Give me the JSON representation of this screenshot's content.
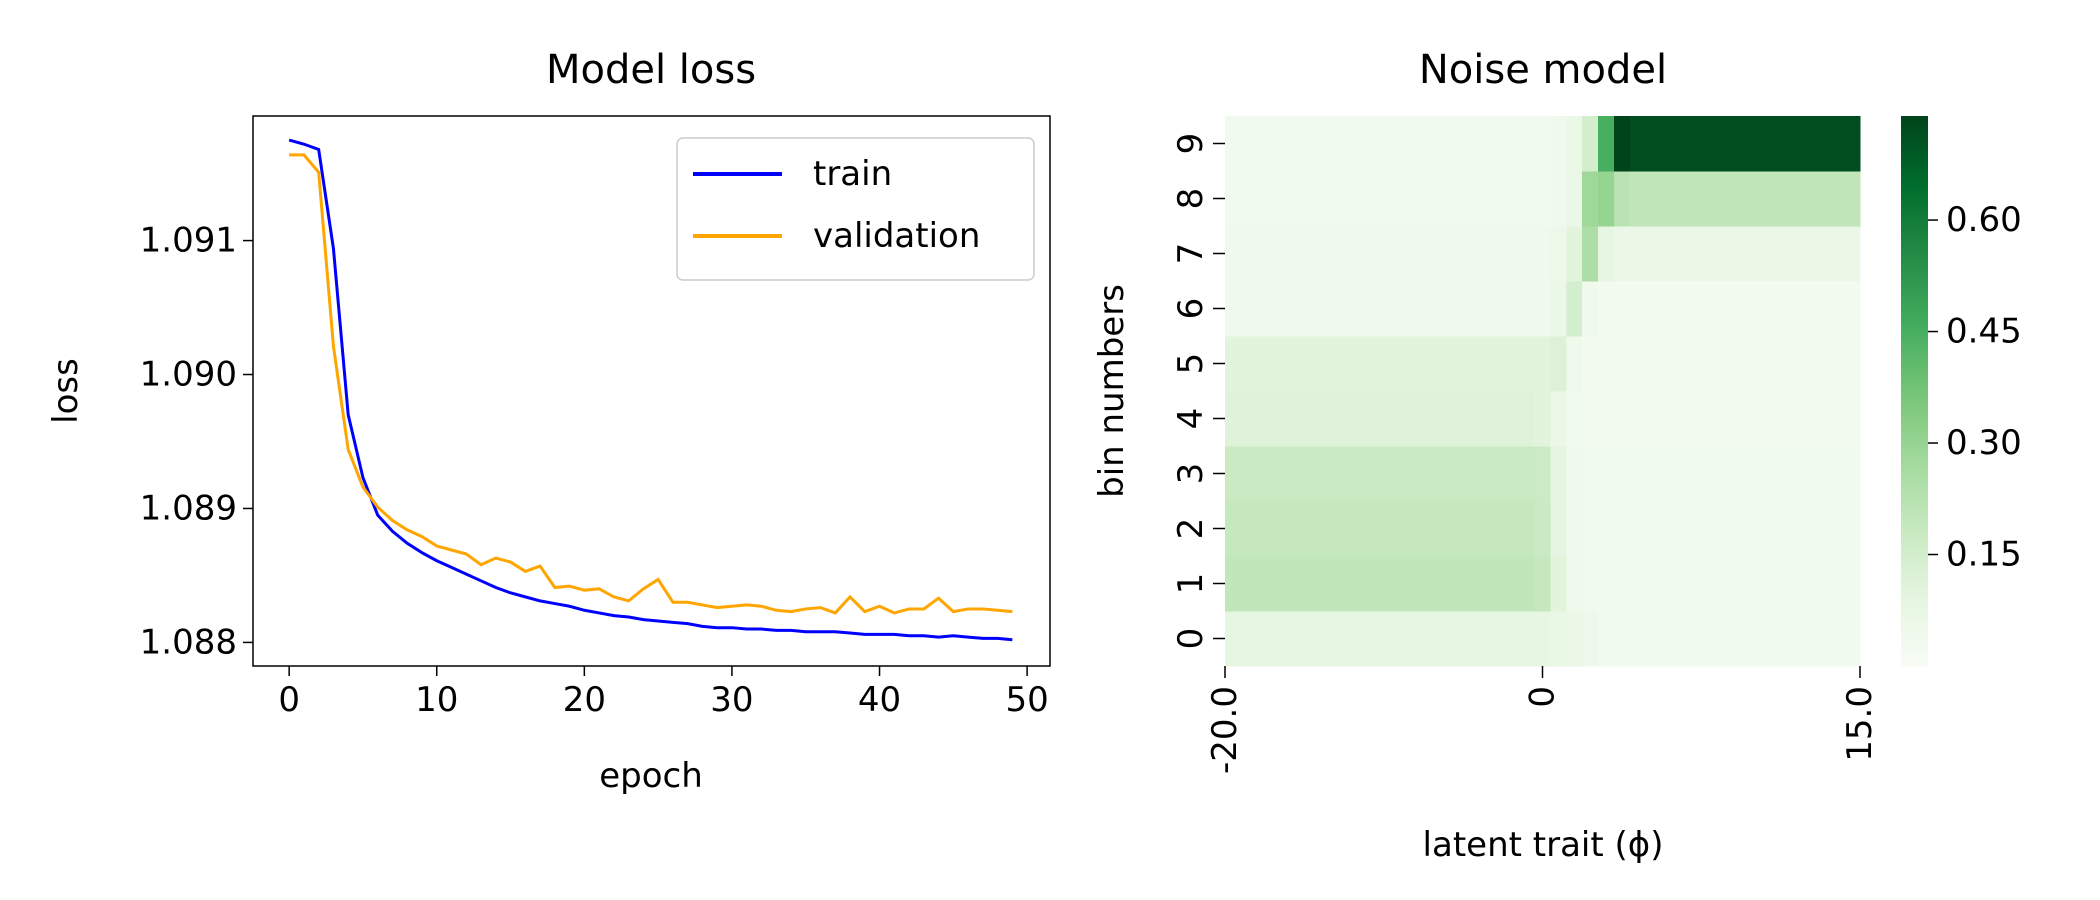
{
  "chart_data": [
    {
      "type": "line",
      "title": "Model loss",
      "x_label": "epoch",
      "y_label": "loss",
      "x": [
        0,
        1,
        2,
        3,
        4,
        5,
        6,
        7,
        8,
        9,
        10,
        11,
        12,
        13,
        14,
        15,
        16,
        17,
        18,
        19,
        20,
        21,
        22,
        23,
        24,
        25,
        26,
        27,
        28,
        29,
        30,
        31,
        32,
        33,
        34,
        35,
        36,
        37,
        38,
        39,
        40,
        41,
        42,
        43,
        44,
        45,
        46,
        47,
        48,
        49
      ],
      "series": [
        {
          "name": "train",
          "color": "#0000ff",
          "values": [
            1.09175,
            1.09172,
            1.09168,
            1.09094,
            1.0897,
            1.08923,
            1.08895,
            1.08883,
            1.08874,
            1.08867,
            1.08861,
            1.08856,
            1.08851,
            1.08846,
            1.08841,
            1.08837,
            1.08834,
            1.08831,
            1.08829,
            1.08827,
            1.08824,
            1.08822,
            1.0882,
            1.08819,
            1.08817,
            1.08816,
            1.08815,
            1.08814,
            1.08812,
            1.08811,
            1.08811,
            1.0881,
            1.0881,
            1.08809,
            1.08809,
            1.08808,
            1.08808,
            1.08808,
            1.08807,
            1.08806,
            1.08806,
            1.08806,
            1.08805,
            1.08805,
            1.08804,
            1.08805,
            1.08804,
            1.08803,
            1.08803,
            1.08802
          ]
        },
        {
          "name": "validation",
          "color": "#ffa500",
          "values": [
            1.09164,
            1.09164,
            1.09151,
            1.09021,
            1.08944,
            1.08916,
            1.08901,
            1.08891,
            1.08884,
            1.08879,
            1.08872,
            1.08869,
            1.08866,
            1.08858,
            1.08863,
            1.0886,
            1.08853,
            1.08857,
            1.08841,
            1.08842,
            1.08839,
            1.0884,
            1.08834,
            1.08831,
            1.0884,
            1.08847,
            1.0883,
            1.0883,
            1.08828,
            1.08826,
            1.08827,
            1.08828,
            1.08827,
            1.08824,
            1.08823,
            1.08825,
            1.08826,
            1.08822,
            1.08834,
            1.08823,
            1.08827,
            1.08822,
            1.08825,
            1.08825,
            1.08833,
            1.08823,
            1.08825,
            1.08825,
            1.08824,
            1.08823
          ]
        }
      ],
      "xlim": [
        -2.45,
        51.55
      ],
      "ylim": [
        1.087824,
        1.09193
      ],
      "xticks": [
        0,
        10,
        20,
        30,
        40,
        50
      ],
      "yticks": [
        1.088,
        1.089,
        {
          "value": 1.09,
          "label": "1.090"
        },
        1.091
      ],
      "legend": "upper right"
    },
    {
      "type": "heatmap",
      "title": "Noise model",
      "x_label": "latent trait (ϕ)",
      "y_label": "bin numbers",
      "cmap": "Greens",
      "clim": [
        0,
        0.74
      ],
      "colorbar_ticks": [
        0.15,
        {
          "value": 0.3,
          "label": "0.30"
        },
        0.45,
        {
          "value": 0.6,
          "label": "0.60"
        }
      ],
      "x": [
        "-20.0",
        null,
        null,
        null,
        null,
        null,
        null,
        null,
        null,
        null,
        null,
        null,
        null,
        null,
        null,
        null,
        null,
        null,
        null,
        null,
        "0",
        null,
        null,
        null,
        null,
        null,
        null,
        null,
        null,
        null,
        null,
        null,
        null,
        null,
        null,
        null,
        null,
        null,
        null,
        null,
        "15.0"
      ],
      "y": [
        "0",
        "1",
        "2",
        "3",
        "4",
        "5",
        "6",
        "7",
        "8",
        "9"
      ],
      "values": [
        [
          0.08,
          0.08,
          0.08,
          0.08,
          0.08,
          0.08,
          0.08,
          0.08,
          0.08,
          0.08,
          0.08,
          0.08,
          0.08,
          0.08,
          0.08,
          0.08,
          0.08,
          0.08,
          0.08,
          0.08,
          0.08,
          0.07,
          0.06,
          0.05,
          0.03,
          0.03,
          0.03,
          0.03,
          0.03,
          0.03,
          0.03,
          0.03,
          0.03,
          0.03,
          0.03,
          0.03,
          0.03,
          0.03,
          0.03,
          0.03,
          0.03
        ],
        [
          0.2,
          0.2,
          0.2,
          0.2,
          0.2,
          0.2,
          0.2,
          0.2,
          0.2,
          0.2,
          0.2,
          0.2,
          0.2,
          0.2,
          0.2,
          0.2,
          0.2,
          0.2,
          0.2,
          0.2,
          0.19,
          0.1,
          0.04,
          0.03,
          0.03,
          0.03,
          0.03,
          0.03,
          0.03,
          0.03,
          0.03,
          0.03,
          0.03,
          0.03,
          0.03,
          0.03,
          0.03,
          0.03,
          0.03,
          0.03,
          0.03
        ],
        [
          0.19,
          0.19,
          0.19,
          0.19,
          0.19,
          0.19,
          0.19,
          0.19,
          0.19,
          0.19,
          0.19,
          0.19,
          0.19,
          0.19,
          0.19,
          0.19,
          0.19,
          0.19,
          0.19,
          0.19,
          0.18,
          0.09,
          0.04,
          0.03,
          0.03,
          0.03,
          0.03,
          0.03,
          0.03,
          0.03,
          0.03,
          0.03,
          0.03,
          0.03,
          0.03,
          0.03,
          0.03,
          0.03,
          0.03,
          0.03,
          0.03
        ],
        [
          0.18,
          0.18,
          0.18,
          0.18,
          0.18,
          0.18,
          0.18,
          0.18,
          0.18,
          0.18,
          0.18,
          0.18,
          0.18,
          0.18,
          0.18,
          0.18,
          0.18,
          0.18,
          0.18,
          0.18,
          0.17,
          0.09,
          0.04,
          0.03,
          0.03,
          0.03,
          0.03,
          0.03,
          0.03,
          0.03,
          0.03,
          0.03,
          0.03,
          0.03,
          0.03,
          0.03,
          0.03,
          0.03,
          0.03,
          0.03,
          0.03
        ],
        [
          0.11,
          0.11,
          0.11,
          0.11,
          0.11,
          0.11,
          0.11,
          0.11,
          0.11,
          0.11,
          0.11,
          0.11,
          0.11,
          0.11,
          0.11,
          0.11,
          0.11,
          0.11,
          0.11,
          0.11,
          0.1,
          0.06,
          0.03,
          0.02,
          0.02,
          0.02,
          0.02,
          0.02,
          0.02,
          0.02,
          0.02,
          0.02,
          0.02,
          0.02,
          0.02,
          0.02,
          0.02,
          0.02,
          0.02,
          0.02,
          0.02
        ],
        [
          0.1,
          0.1,
          0.1,
          0.1,
          0.1,
          0.1,
          0.1,
          0.1,
          0.1,
          0.1,
          0.1,
          0.1,
          0.1,
          0.1,
          0.1,
          0.1,
          0.1,
          0.1,
          0.1,
          0.1,
          0.1,
          0.12,
          0.04,
          0.02,
          0.02,
          0.02,
          0.02,
          0.02,
          0.02,
          0.02,
          0.02,
          0.02,
          0.02,
          0.02,
          0.02,
          0.02,
          0.02,
          0.02,
          0.02,
          0.02,
          0.02
        ],
        [
          0.04,
          0.04,
          0.04,
          0.04,
          0.04,
          0.04,
          0.04,
          0.04,
          0.04,
          0.04,
          0.04,
          0.04,
          0.04,
          0.04,
          0.04,
          0.04,
          0.04,
          0.04,
          0.04,
          0.04,
          0.04,
          0.06,
          0.15,
          0.04,
          0.02,
          0.02,
          0.02,
          0.02,
          0.02,
          0.02,
          0.02,
          0.02,
          0.02,
          0.02,
          0.02,
          0.02,
          0.02,
          0.02,
          0.02,
          0.02,
          0.02
        ],
        [
          0.04,
          0.04,
          0.04,
          0.04,
          0.04,
          0.04,
          0.04,
          0.04,
          0.04,
          0.04,
          0.04,
          0.04,
          0.04,
          0.04,
          0.04,
          0.04,
          0.04,
          0.04,
          0.04,
          0.04,
          0.04,
          0.05,
          0.1,
          0.25,
          0.08,
          0.06,
          0.06,
          0.06,
          0.06,
          0.06,
          0.06,
          0.06,
          0.06,
          0.06,
          0.06,
          0.06,
          0.06,
          0.06,
          0.06,
          0.06,
          0.06
        ],
        [
          0.03,
          0.03,
          0.03,
          0.03,
          0.03,
          0.03,
          0.03,
          0.03,
          0.03,
          0.03,
          0.03,
          0.03,
          0.03,
          0.03,
          0.03,
          0.03,
          0.03,
          0.03,
          0.03,
          0.03,
          0.03,
          0.04,
          0.06,
          0.28,
          0.3,
          0.22,
          0.2,
          0.2,
          0.2,
          0.2,
          0.2,
          0.2,
          0.2,
          0.2,
          0.2,
          0.2,
          0.2,
          0.2,
          0.2,
          0.2,
          0.2
        ],
        [
          0.03,
          0.03,
          0.03,
          0.03,
          0.03,
          0.03,
          0.03,
          0.03,
          0.03,
          0.03,
          0.03,
          0.03,
          0.03,
          0.03,
          0.03,
          0.03,
          0.03,
          0.03,
          0.03,
          0.03,
          0.03,
          0.04,
          0.06,
          0.15,
          0.45,
          0.74,
          0.72,
          0.72,
          0.72,
          0.72,
          0.72,
          0.72,
          0.72,
          0.72,
          0.72,
          0.72,
          0.72,
          0.72,
          0.72,
          0.72,
          0.72
        ]
      ]
    }
  ]
}
